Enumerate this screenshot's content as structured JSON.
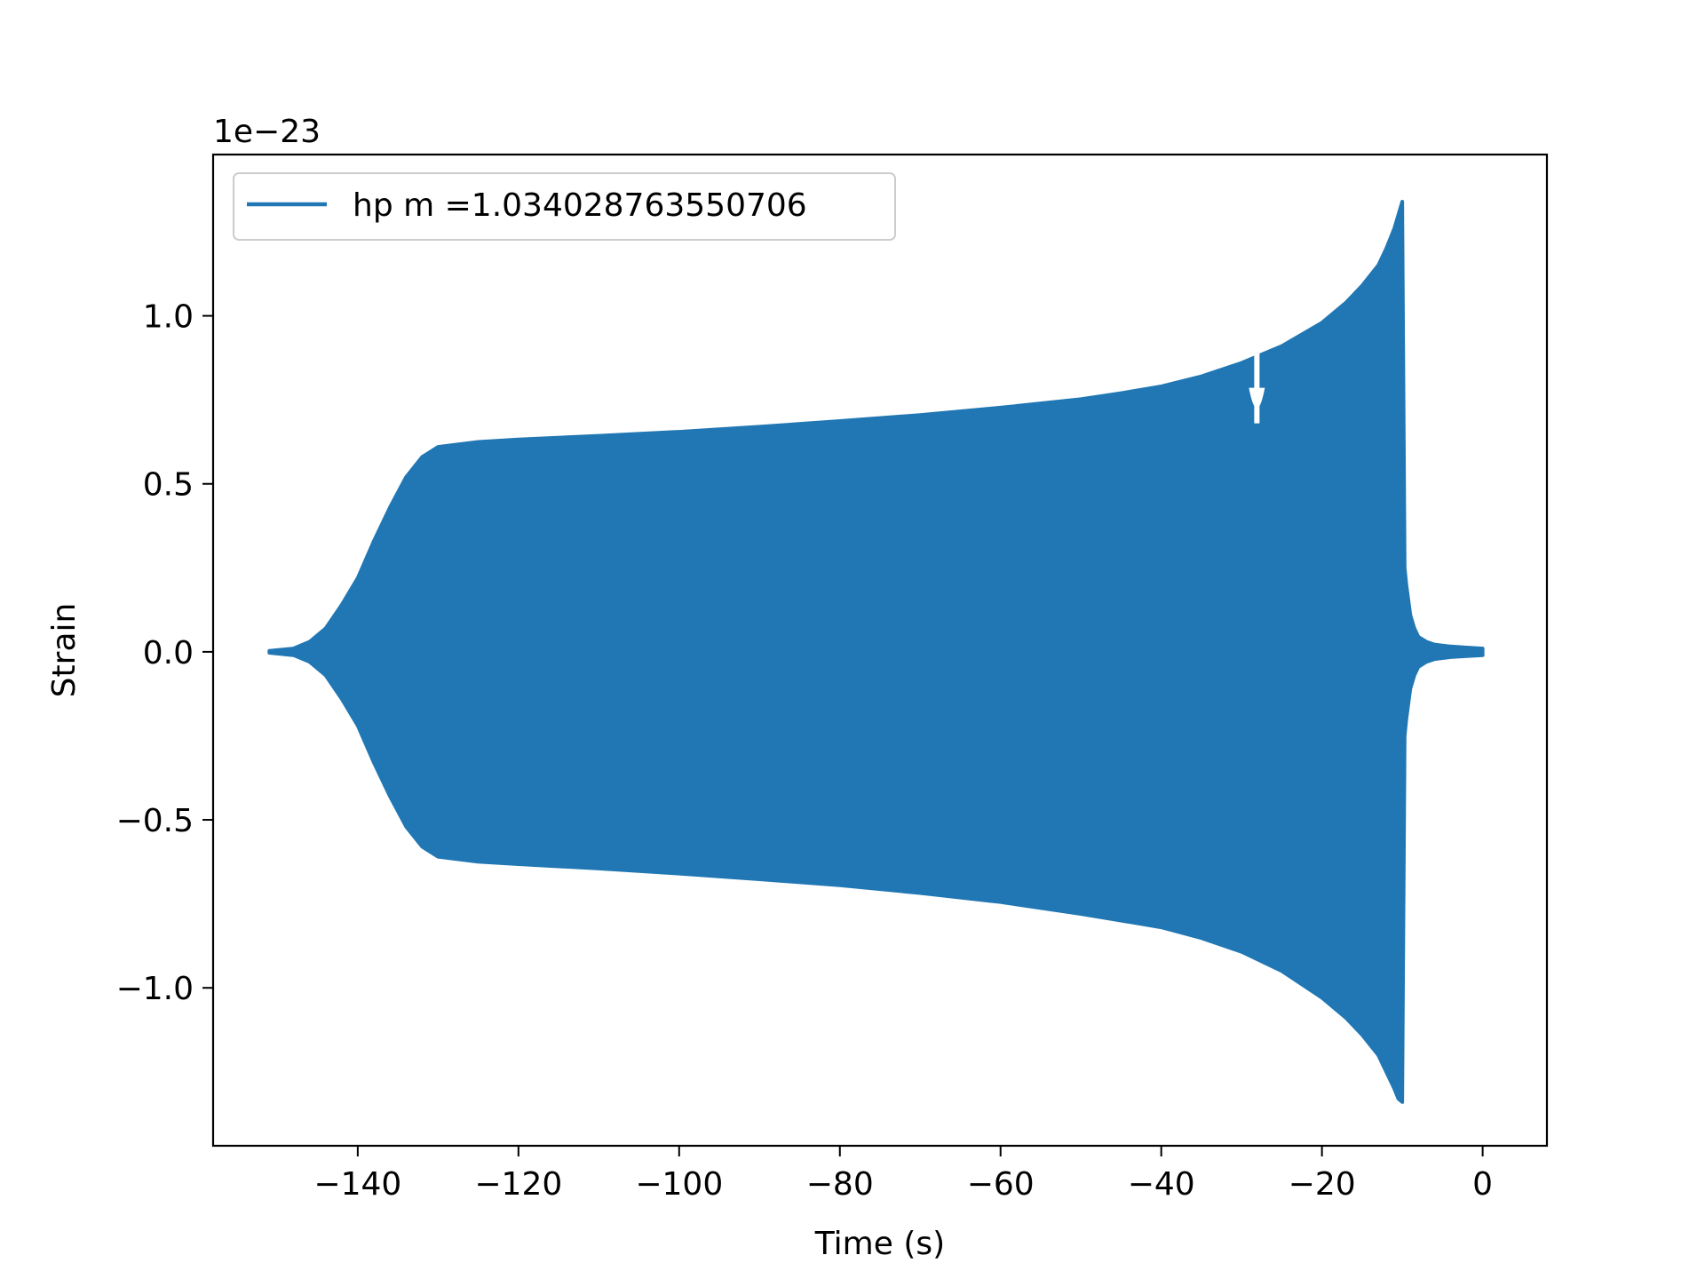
{
  "chart_data": {
    "type": "line",
    "title": "",
    "xlabel": "Time (s)",
    "ylabel": "Strain",
    "y_offset_text": "1e−23",
    "xlim": [
      -158,
      8
    ],
    "ylim": [
      -1.47,
      1.48
    ],
    "x_ticks": [
      -140,
      -120,
      -100,
      -80,
      -60,
      -40,
      -20,
      0
    ],
    "x_tick_labels": [
      "−140",
      "−120",
      "−100",
      "−80",
      "−60",
      "−40",
      "−20",
      "0"
    ],
    "y_ticks": [
      -1.0,
      -0.5,
      0.0,
      0.5,
      1.0
    ],
    "y_tick_labels": [
      "−1.0",
      "−0.5",
      "0.0",
      "0.5",
      "1.0"
    ],
    "grid": false,
    "legend_position": "top-left",
    "series": [
      {
        "name": "hp m =1.034028763550706",
        "color": "#2077b4",
        "envelope": {
          "t": [
            -151.0,
            -148.0,
            -146.0,
            -144.0,
            -142.0,
            -140.0,
            -138.0,
            -136.0,
            -134.0,
            -132.0,
            -130.0,
            -125.0,
            -120.0,
            -110.0,
            -100.0,
            -90.0,
            -80.0,
            -70.0,
            -60.0,
            -50.0,
            -45.0,
            -40.0,
            -35.0,
            -30.0,
            -25.0,
            -20.0,
            -17.0,
            -15.0,
            -13.0,
            -12.0,
            -11.0,
            -10.5,
            -10.0,
            -9.7,
            -9.5,
            -9.0,
            -8.5,
            -8.0,
            -7.0,
            -6.0,
            -4.0,
            -2.0,
            0.0
          ],
          "upper": [
            0.003,
            0.01,
            0.03,
            0.07,
            0.14,
            0.22,
            0.33,
            0.43,
            0.52,
            0.58,
            0.61,
            0.625,
            0.632,
            0.643,
            0.655,
            0.67,
            0.687,
            0.705,
            0.727,
            0.752,
            0.77,
            0.79,
            0.82,
            0.86,
            0.91,
            0.98,
            1.04,
            1.09,
            1.15,
            1.2,
            1.26,
            1.3,
            1.34,
            0.25,
            0.2,
            0.11,
            0.07,
            0.045,
            0.03,
            0.022,
            0.016,
            0.013,
            0.01
          ],
          "lower": [
            -0.003,
            -0.01,
            -0.03,
            -0.07,
            -0.14,
            -0.22,
            -0.33,
            -0.43,
            -0.52,
            -0.58,
            -0.61,
            -0.625,
            -0.632,
            -0.645,
            -0.66,
            -0.677,
            -0.695,
            -0.718,
            -0.745,
            -0.78,
            -0.8,
            -0.82,
            -0.852,
            -0.893,
            -0.95,
            -1.03,
            -1.09,
            -1.14,
            -1.2,
            -1.25,
            -1.3,
            -1.33,
            -1.34,
            -0.25,
            -0.2,
            -0.11,
            -0.07,
            -0.045,
            -0.03,
            -0.022,
            -0.016,
            -0.013,
            -0.01
          ]
        }
      }
    ]
  }
}
